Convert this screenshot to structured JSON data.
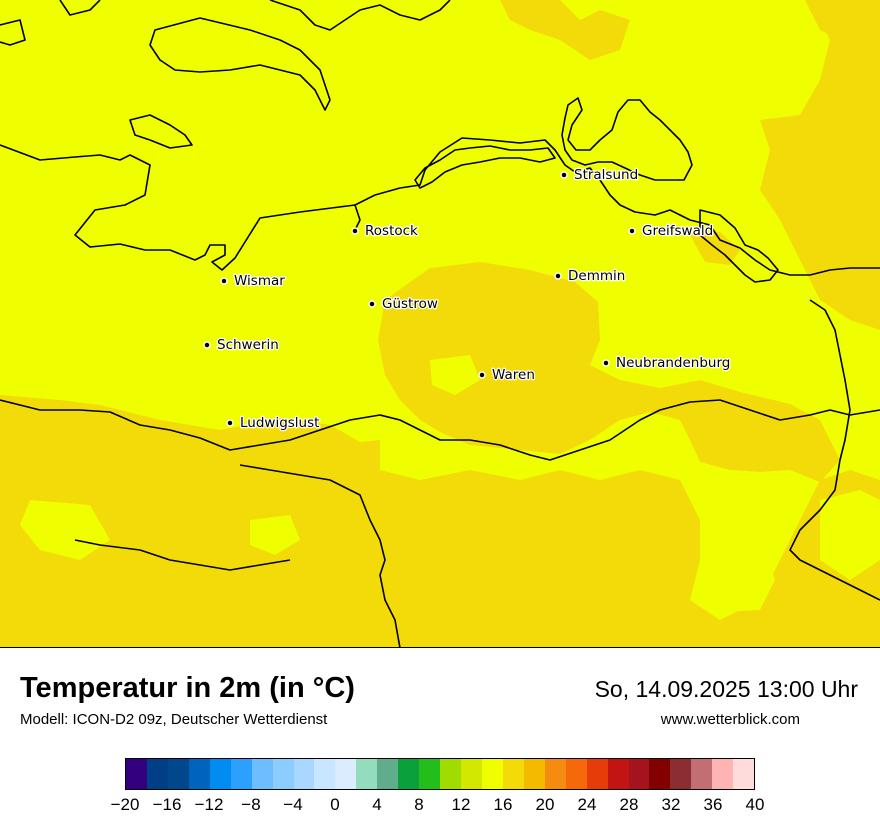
{
  "map": {
    "colors": {
      "temp_16_18": "#f0ff00",
      "temp_18_20": "#f3db09",
      "coastline": "#000000"
    },
    "cities": [
      {
        "name": "Stralsund"
      },
      {
        "name": "Rostock"
      },
      {
        "name": "Greifswald"
      },
      {
        "name": "Wismar"
      },
      {
        "name": "Demmin"
      },
      {
        "name": "Güstrow"
      },
      {
        "name": "Schwerin"
      },
      {
        "name": "Neubrandenburg"
      },
      {
        "name": "Waren"
      },
      {
        "name": "Ludwigslust"
      }
    ]
  },
  "footer": {
    "title": "Temperatur in 2m (in °C)",
    "model": "Modell: ICON-D2 09z, Deutscher Wetterdienst",
    "datetime": "So, 14.09.2025 13:00 Uhr",
    "website": "www.wetterblick.com"
  },
  "legend": {
    "colors": [
      "#33007f",
      "#003f87",
      "#00478c",
      "#0064be",
      "#008cf0",
      "#2ba0ff",
      "#6ebeff",
      "#8ccdff",
      "#aad7ff",
      "#c8e6ff",
      "#dcecff",
      "#94dcbe",
      "#5fad8c",
      "#0aa03c",
      "#23be19",
      "#a0dc00",
      "#d2e800",
      "#f0ff00",
      "#f3db09",
      "#f4ba00",
      "#f58c0f",
      "#f5690a",
      "#e63c0a",
      "#c31414",
      "#a5141e",
      "#820000",
      "#8c2d32",
      "#c36e73",
      "#ffb4b4",
      "#ffdcdc"
    ],
    "ticks": [
      "−20",
      "−16",
      "−12",
      "−8",
      "−4",
      "0",
      "4",
      "8",
      "12",
      "16",
      "20",
      "24",
      "28",
      "32",
      "36",
      "40"
    ],
    "min": -20,
    "max": 40
  }
}
